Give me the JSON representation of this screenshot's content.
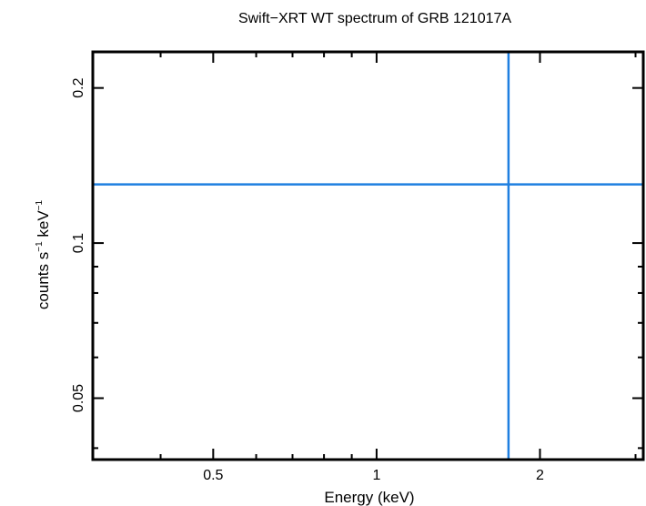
{
  "chart_data": {
    "type": "scatter",
    "title": "Swift−XRT WT spectrum of GRB 121017A",
    "xlabel": "Energy (keV)",
    "ylabel_main": "counts s",
    "ylabel_exp1": "−1",
    "ylabel_mid": " keV",
    "ylabel_exp2": "−1",
    "x_scale": "log",
    "y_scale": "log",
    "xlim": [
      0.3,
      3.1
    ],
    "ylim": [
      0.038,
      0.235
    ],
    "grid": false,
    "x_ticks": [
      {
        "value": 0.5,
        "label": "0.5"
      },
      {
        "value": 1,
        "label": "1"
      },
      {
        "value": 2,
        "label": "2"
      }
    ],
    "y_ticks": [
      {
        "value": 0.05,
        "label": "0.05"
      },
      {
        "value": 0.1,
        "label": "0.1"
      },
      {
        "value": 0.2,
        "label": "0.2"
      }
    ],
    "series": [
      {
        "color": "#1f7fe0",
        "points": [
          {
            "x": 1.75,
            "y": 0.13,
            "xerr": [
              0.3,
              3.1
            ],
            "yerr": [
              0.038,
              0.235
            ]
          }
        ]
      }
    ]
  }
}
